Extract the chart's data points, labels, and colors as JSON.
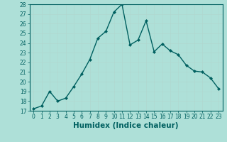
{
  "x": [
    0,
    1,
    2,
    3,
    4,
    5,
    6,
    7,
    8,
    9,
    10,
    11,
    12,
    13,
    14,
    15,
    16,
    17,
    18,
    19,
    20,
    21,
    22,
    23
  ],
  "y": [
    17.2,
    17.5,
    19.0,
    18.0,
    18.3,
    19.5,
    20.8,
    22.3,
    24.5,
    25.2,
    27.2,
    28.0,
    23.8,
    24.3,
    26.3,
    23.1,
    23.9,
    23.2,
    22.8,
    21.7,
    21.1,
    21.0,
    20.4,
    19.3
  ],
  "line_color": "#006060",
  "marker": "D",
  "marker_size": 2,
  "background_color": "#aee0d8",
  "grid_color": "#c8e8e0",
  "xlabel": "Humidex (Indice chaleur)",
  "ylabel": "",
  "title": "",
  "xlim": [
    -0.5,
    23.5
  ],
  "ylim": [
    17,
    28
  ],
  "yticks": [
    17,
    18,
    19,
    20,
    21,
    22,
    23,
    24,
    25,
    26,
    27,
    28
  ],
  "xticks": [
    0,
    1,
    2,
    3,
    4,
    5,
    6,
    7,
    8,
    9,
    10,
    11,
    12,
    13,
    14,
    15,
    16,
    17,
    18,
    19,
    20,
    21,
    22,
    23
  ],
  "tick_label_fontsize": 5.5,
  "xlabel_fontsize": 7.5,
  "linewidth": 1.0
}
